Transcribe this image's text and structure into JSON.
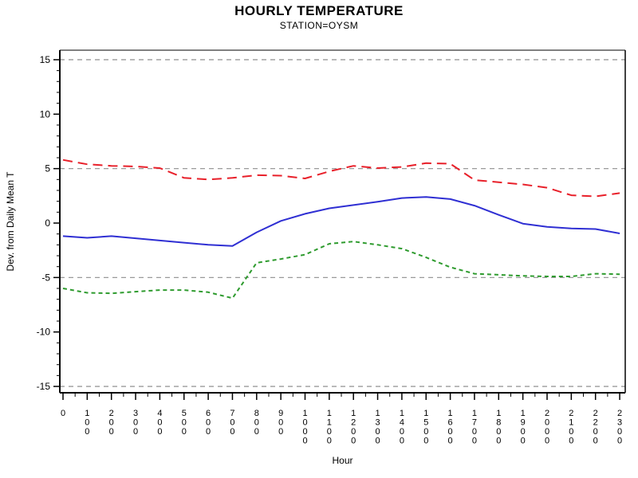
{
  "page": {
    "background": "#ffffff"
  },
  "chart_data": {
    "type": "line",
    "title": "HOURLY TEMPERATURE",
    "subtitle": "STATION=OYSM",
    "xlabel": "Hour",
    "ylabel": "Dev. from Daily Mean T",
    "categories": [
      "0",
      "100",
      "200",
      "300",
      "400",
      "500",
      "600",
      "700",
      "800",
      "900",
      "1000",
      "1100",
      "1200",
      "1300",
      "1400",
      "1500",
      "1600",
      "1700",
      "1800",
      "1900",
      "2000",
      "2100",
      "2200",
      "2300"
    ],
    "yticks_major": [
      -15,
      -10,
      -5,
      0,
      5,
      10,
      15
    ],
    "ytick_minor_step": 1,
    "ylim": [
      -15.9,
      15.9
    ],
    "reference_lines_y": [
      15,
      5,
      -5,
      -15
    ],
    "reference_line_color": "#9a9a9a",
    "grid": "dashed horizontal reference lines at 15, 5, -5, -15 only",
    "legend_position": "none",
    "axis_color": "#000000",
    "series": [
      {
        "name": "upper-deviation-red-dashed",
        "color": "#e8202a",
        "style": "dashed-long",
        "values": [
          5.8,
          5.4,
          5.25,
          5.2,
          5.05,
          4.15,
          4.0,
          4.15,
          4.4,
          4.35,
          4.1,
          4.75,
          5.25,
          5.05,
          5.15,
          5.5,
          5.45,
          3.95,
          3.75,
          3.55,
          3.25,
          2.55,
          2.45,
          2.75
        ]
      },
      {
        "name": "mean-deviation-blue-solid",
        "color": "#2f2fd3",
        "style": "solid",
        "values": [
          -1.2,
          -1.35,
          -1.2,
          -1.4,
          -1.6,
          -1.8,
          -2.0,
          -2.1,
          -0.85,
          0.2,
          0.85,
          1.35,
          1.65,
          1.95,
          2.3,
          2.4,
          2.2,
          1.6,
          0.75,
          -0.05,
          -0.35,
          -0.5,
          -0.55,
          -0.95
        ]
      },
      {
        "name": "lower-deviation-green-dashed",
        "color": "#2e9b2e",
        "style": "dashed-short",
        "values": [
          -6.0,
          -6.4,
          -6.45,
          -6.3,
          -6.15,
          -6.15,
          -6.35,
          -6.9,
          -3.65,
          -3.3,
          -2.9,
          -1.9,
          -1.7,
          -2.0,
          -2.35,
          -3.15,
          -4.05,
          -4.65,
          -4.75,
          -4.85,
          -4.9,
          -4.9,
          -4.65,
          -4.7
        ]
      }
    ]
  }
}
